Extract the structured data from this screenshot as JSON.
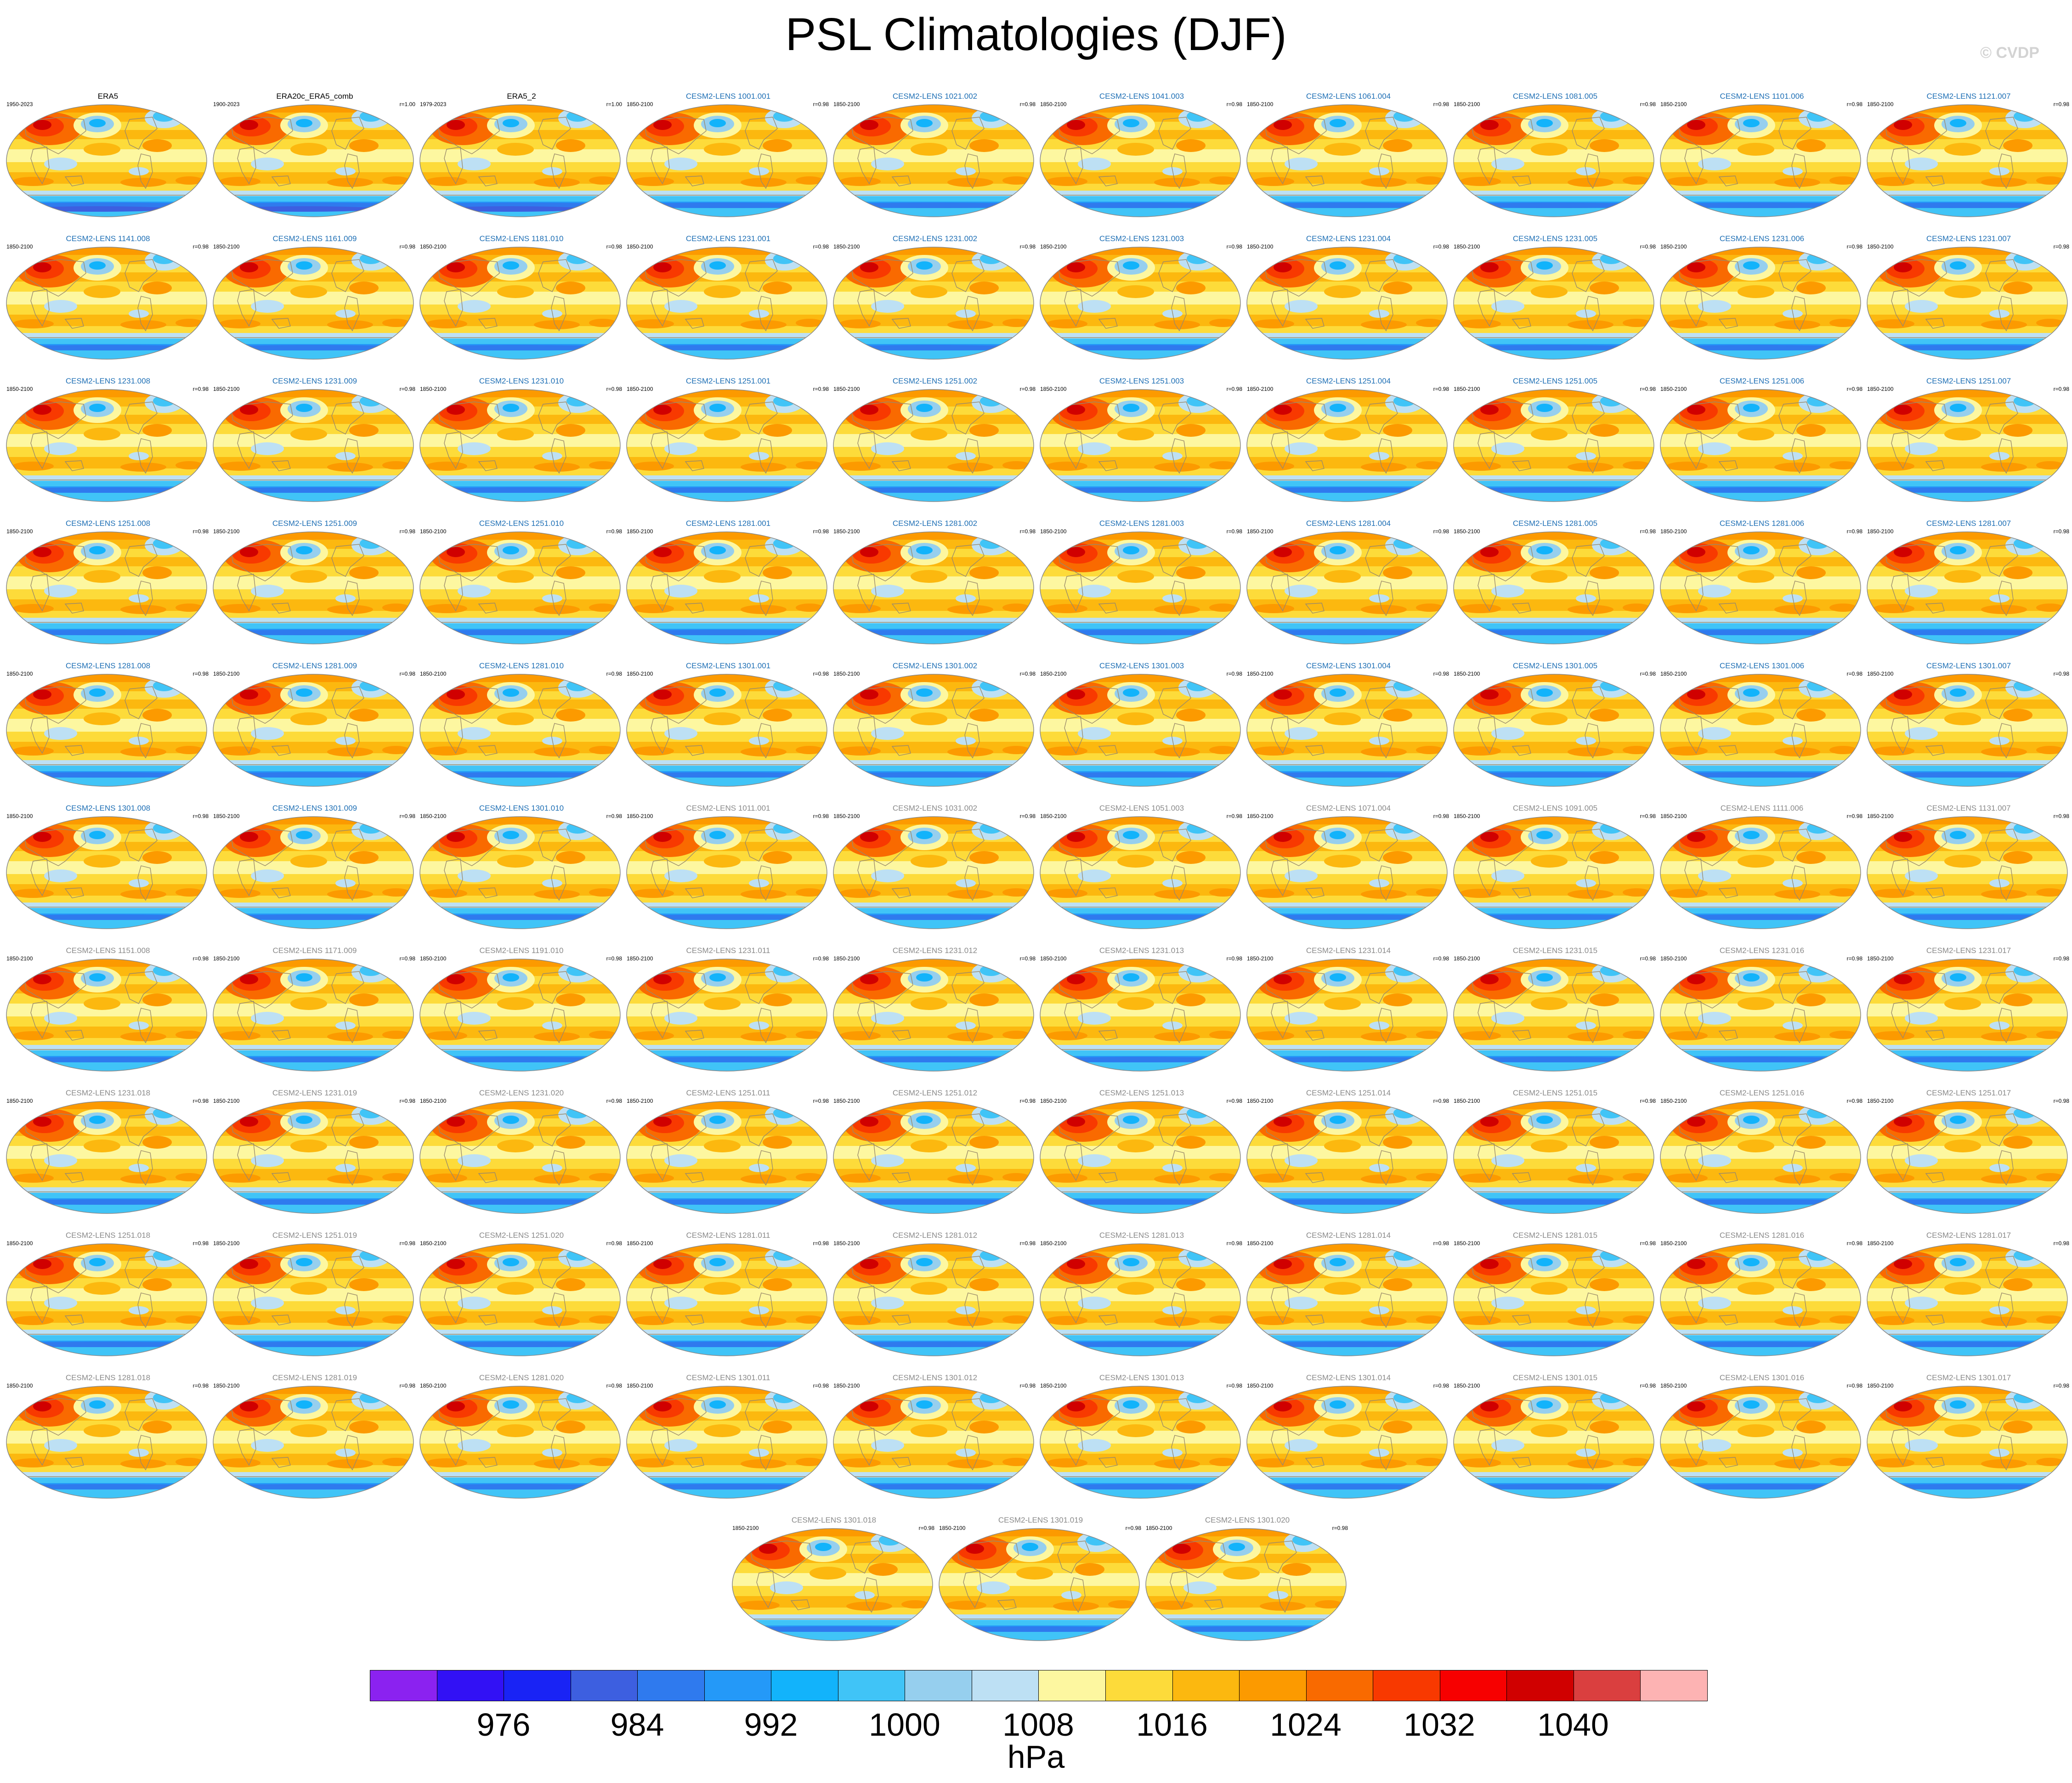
{
  "title": "PSL Climatologies (DJF)",
  "watermark": "© CVDP",
  "colors": {
    "observation_title": "#000000",
    "cesm_title_blue": "#1e6fb5",
    "cesm_title_gray": "#8a8a8a"
  },
  "chart_data": {
    "type": "heatmap",
    "title": "PSL Climatologies (DJF)",
    "projection": "Robinson global map",
    "colorbar": {
      "units": "hPa",
      "tick_labels": [
        "976",
        "984",
        "992",
        "1000",
        "1008",
        "1016",
        "1024",
        "1032",
        "1040"
      ],
      "colors": [
        "#8b22f0",
        "#3211f5",
        "#1923f5",
        "#3d5fe0",
        "#2f7aee",
        "#2499f8",
        "#12b3fb",
        "#40c4f7",
        "#96cfee",
        "#bde0f4",
        "#fdf7a0",
        "#fddb3a",
        "#fcb80f",
        "#fc9a00",
        "#f96a00",
        "#f83900",
        "#f70000",
        "#d00000",
        "#da3f3f",
        "#fdb3b3"
      ]
    },
    "panels": [
      {
        "title": "ERA5",
        "years": "1950-2023",
        "r": "",
        "style": "obs"
      },
      {
        "title": "ERA20c_ERA5_comb",
        "years": "1900-2023",
        "r": "r=1.00",
        "style": "obs"
      },
      {
        "title": "ERA5_2",
        "years": "1979-2023",
        "r": "r=1.00",
        "style": "obs"
      },
      {
        "title": "CESM2-LENS 1001.001",
        "years": "1850-2100",
        "r": "r=0.98",
        "style": "blue"
      },
      {
        "title": "CESM2-LENS 1021.002",
        "years": "1850-2100",
        "r": "r=0.98",
        "style": "blue"
      },
      {
        "title": "CESM2-LENS 1041.003",
        "years": "1850-2100",
        "r": "r=0.98",
        "style": "blue"
      },
      {
        "title": "CESM2-LENS 1061.004",
        "years": "1850-2100",
        "r": "r=0.98",
        "style": "blue"
      },
      {
        "title": "CESM2-LENS 1081.005",
        "years": "1850-2100",
        "r": "r=0.98",
        "style": "blue"
      },
      {
        "title": "CESM2-LENS 1101.006",
        "years": "1850-2100",
        "r": "r=0.98",
        "style": "blue"
      },
      {
        "title": "CESM2-LENS 1121.007",
        "years": "1850-2100",
        "r": "r=0.98",
        "style": "blue"
      },
      {
        "title": "CESM2-LENS 1141.008",
        "years": "1850-2100",
        "r": "r=0.98",
        "style": "blue"
      },
      {
        "title": "CESM2-LENS 1161.009",
        "years": "1850-2100",
        "r": "r=0.98",
        "style": "blue"
      },
      {
        "title": "CESM2-LENS 1181.010",
        "years": "1850-2100",
        "r": "r=0.98",
        "style": "blue"
      },
      {
        "title": "CESM2-LENS 1231.001",
        "years": "1850-2100",
        "r": "r=0.98",
        "style": "blue"
      },
      {
        "title": "CESM2-LENS 1231.002",
        "years": "1850-2100",
        "r": "r=0.98",
        "style": "blue"
      },
      {
        "title": "CESM2-LENS 1231.003",
        "years": "1850-2100",
        "r": "r=0.98",
        "style": "blue"
      },
      {
        "title": "CESM2-LENS 1231.004",
        "years": "1850-2100",
        "r": "r=0.98",
        "style": "blue"
      },
      {
        "title": "CESM2-LENS 1231.005",
        "years": "1850-2100",
        "r": "r=0.98",
        "style": "blue"
      },
      {
        "title": "CESM2-LENS 1231.006",
        "years": "1850-2100",
        "r": "r=0.98",
        "style": "blue"
      },
      {
        "title": "CESM2-LENS 1231.007",
        "years": "1850-2100",
        "r": "r=0.98",
        "style": "blue"
      },
      {
        "title": "CESM2-LENS 1231.008",
        "years": "1850-2100",
        "r": "r=0.98",
        "style": "blue"
      },
      {
        "title": "CESM2-LENS 1231.009",
        "years": "1850-2100",
        "r": "r=0.98",
        "style": "blue"
      },
      {
        "title": "CESM2-LENS 1231.010",
        "years": "1850-2100",
        "r": "r=0.98",
        "style": "blue"
      },
      {
        "title": "CESM2-LENS 1251.001",
        "years": "1850-2100",
        "r": "r=0.98",
        "style": "blue"
      },
      {
        "title": "CESM2-LENS 1251.002",
        "years": "1850-2100",
        "r": "r=0.98",
        "style": "blue"
      },
      {
        "title": "CESM2-LENS 1251.003",
        "years": "1850-2100",
        "r": "r=0.98",
        "style": "blue"
      },
      {
        "title": "CESM2-LENS 1251.004",
        "years": "1850-2100",
        "r": "r=0.98",
        "style": "blue"
      },
      {
        "title": "CESM2-LENS 1251.005",
        "years": "1850-2100",
        "r": "r=0.98",
        "style": "blue"
      },
      {
        "title": "CESM2-LENS 1251.006",
        "years": "1850-2100",
        "r": "r=0.98",
        "style": "blue"
      },
      {
        "title": "CESM2-LENS 1251.007",
        "years": "1850-2100",
        "r": "r=0.98",
        "style": "blue"
      },
      {
        "title": "CESM2-LENS 1251.008",
        "years": "1850-2100",
        "r": "r=0.98",
        "style": "blue"
      },
      {
        "title": "CESM2-LENS 1251.009",
        "years": "1850-2100",
        "r": "r=0.98",
        "style": "blue"
      },
      {
        "title": "CESM2-LENS 1251.010",
        "years": "1850-2100",
        "r": "r=0.98",
        "style": "blue"
      },
      {
        "title": "CESM2-LENS 1281.001",
        "years": "1850-2100",
        "r": "r=0.98",
        "style": "blue"
      },
      {
        "title": "CESM2-LENS 1281.002",
        "years": "1850-2100",
        "r": "r=0.98",
        "style": "blue"
      },
      {
        "title": "CESM2-LENS 1281.003",
        "years": "1850-2100",
        "r": "r=0.98",
        "style": "blue"
      },
      {
        "title": "CESM2-LENS 1281.004",
        "years": "1850-2100",
        "r": "r=0.98",
        "style": "blue"
      },
      {
        "title": "CESM2-LENS 1281.005",
        "years": "1850-2100",
        "r": "r=0.98",
        "style": "blue"
      },
      {
        "title": "CESM2-LENS 1281.006",
        "years": "1850-2100",
        "r": "r=0.98",
        "style": "blue"
      },
      {
        "title": "CESM2-LENS 1281.007",
        "years": "1850-2100",
        "r": "r=0.98",
        "style": "blue"
      },
      {
        "title": "CESM2-LENS 1281.008",
        "years": "1850-2100",
        "r": "r=0.98",
        "style": "blue"
      },
      {
        "title": "CESM2-LENS 1281.009",
        "years": "1850-2100",
        "r": "r=0.98",
        "style": "blue"
      },
      {
        "title": "CESM2-LENS 1281.010",
        "years": "1850-2100",
        "r": "r=0.98",
        "style": "blue"
      },
      {
        "title": "CESM2-LENS 1301.001",
        "years": "1850-2100",
        "r": "r=0.98",
        "style": "blue"
      },
      {
        "title": "CESM2-LENS 1301.002",
        "years": "1850-2100",
        "r": "r=0.98",
        "style": "blue"
      },
      {
        "title": "CESM2-LENS 1301.003",
        "years": "1850-2100",
        "r": "r=0.98",
        "style": "blue"
      },
      {
        "title": "CESM2-LENS 1301.004",
        "years": "1850-2100",
        "r": "r=0.98",
        "style": "blue"
      },
      {
        "title": "CESM2-LENS 1301.005",
        "years": "1850-2100",
        "r": "r=0.98",
        "style": "blue"
      },
      {
        "title": "CESM2-LENS 1301.006",
        "years": "1850-2100",
        "r": "r=0.98",
        "style": "blue"
      },
      {
        "title": "CESM2-LENS 1301.007",
        "years": "1850-2100",
        "r": "r=0.98",
        "style": "blue"
      },
      {
        "title": "CESM2-LENS 1301.008",
        "years": "1850-2100",
        "r": "r=0.98",
        "style": "blue"
      },
      {
        "title": "CESM2-LENS 1301.009",
        "years": "1850-2100",
        "r": "r=0.98",
        "style": "blue"
      },
      {
        "title": "CESM2-LENS 1301.010",
        "years": "1850-2100",
        "r": "r=0.98",
        "style": "blue"
      },
      {
        "title": "CESM2-LENS 1011.001",
        "years": "1850-2100",
        "r": "r=0.98",
        "style": "gray"
      },
      {
        "title": "CESM2-LENS 1031.002",
        "years": "1850-2100",
        "r": "r=0.98",
        "style": "gray"
      },
      {
        "title": "CESM2-LENS 1051.003",
        "years": "1850-2100",
        "r": "r=0.98",
        "style": "gray"
      },
      {
        "title": "CESM2-LENS 1071.004",
        "years": "1850-2100",
        "r": "r=0.98",
        "style": "gray"
      },
      {
        "title": "CESM2-LENS 1091.005",
        "years": "1850-2100",
        "r": "r=0.98",
        "style": "gray"
      },
      {
        "title": "CESM2-LENS 1111.006",
        "years": "1850-2100",
        "r": "r=0.98",
        "style": "gray"
      },
      {
        "title": "CESM2-LENS 1131.007",
        "years": "1850-2100",
        "r": "r=0.98",
        "style": "gray"
      },
      {
        "title": "CESM2-LENS 1151.008",
        "years": "1850-2100",
        "r": "r=0.98",
        "style": "gray"
      },
      {
        "title": "CESM2-LENS 1171.009",
        "years": "1850-2100",
        "r": "r=0.98",
        "style": "gray"
      },
      {
        "title": "CESM2-LENS 1191.010",
        "years": "1850-2100",
        "r": "r=0.98",
        "style": "gray"
      },
      {
        "title": "CESM2-LENS 1231.011",
        "years": "1850-2100",
        "r": "r=0.98",
        "style": "gray"
      },
      {
        "title": "CESM2-LENS 1231.012",
        "years": "1850-2100",
        "r": "r=0.98",
        "style": "gray"
      },
      {
        "title": "CESM2-LENS 1231.013",
        "years": "1850-2100",
        "r": "r=0.98",
        "style": "gray"
      },
      {
        "title": "CESM2-LENS 1231.014",
        "years": "1850-2100",
        "r": "r=0.98",
        "style": "gray"
      },
      {
        "title": "CESM2-LENS 1231.015",
        "years": "1850-2100",
        "r": "r=0.98",
        "style": "gray"
      },
      {
        "title": "CESM2-LENS 1231.016",
        "years": "1850-2100",
        "r": "r=0.98",
        "style": "gray"
      },
      {
        "title": "CESM2-LENS 1231.017",
        "years": "1850-2100",
        "r": "r=0.98",
        "style": "gray"
      },
      {
        "title": "CESM2-LENS 1231.018",
        "years": "1850-2100",
        "r": "r=0.98",
        "style": "gray"
      },
      {
        "title": "CESM2-LENS 1231.019",
        "years": "1850-2100",
        "r": "r=0.98",
        "style": "gray"
      },
      {
        "title": "CESM2-LENS 1231.020",
        "years": "1850-2100",
        "r": "r=0.98",
        "style": "gray"
      },
      {
        "title": "CESM2-LENS 1251.011",
        "years": "1850-2100",
        "r": "r=0.98",
        "style": "gray"
      },
      {
        "title": "CESM2-LENS 1251.012",
        "years": "1850-2100",
        "r": "r=0.98",
        "style": "gray"
      },
      {
        "title": "CESM2-LENS 1251.013",
        "years": "1850-2100",
        "r": "r=0.98",
        "style": "gray"
      },
      {
        "title": "CESM2-LENS 1251.014",
        "years": "1850-2100",
        "r": "r=0.98",
        "style": "gray"
      },
      {
        "title": "CESM2-LENS 1251.015",
        "years": "1850-2100",
        "r": "r=0.98",
        "style": "gray"
      },
      {
        "title": "CESM2-LENS 1251.016",
        "years": "1850-2100",
        "r": "r=0.98",
        "style": "gray"
      },
      {
        "title": "CESM2-LENS 1251.017",
        "years": "1850-2100",
        "r": "r=0.98",
        "style": "gray"
      },
      {
        "title": "CESM2-LENS 1251.018",
        "years": "1850-2100",
        "r": "r=0.98",
        "style": "gray"
      },
      {
        "title": "CESM2-LENS 1251.019",
        "years": "1850-2100",
        "r": "r=0.98",
        "style": "gray"
      },
      {
        "title": "CESM2-LENS 1251.020",
        "years": "1850-2100",
        "r": "r=0.98",
        "style": "gray"
      },
      {
        "title": "CESM2-LENS 1281.011",
        "years": "1850-2100",
        "r": "r=0.98",
        "style": "gray"
      },
      {
        "title": "CESM2-LENS 1281.012",
        "years": "1850-2100",
        "r": "r=0.98",
        "style": "gray"
      },
      {
        "title": "CESM2-LENS 1281.013",
        "years": "1850-2100",
        "r": "r=0.98",
        "style": "gray"
      },
      {
        "title": "CESM2-LENS 1281.014",
        "years": "1850-2100",
        "r": "r=0.98",
        "style": "gray"
      },
      {
        "title": "CESM2-LENS 1281.015",
        "years": "1850-2100",
        "r": "r=0.98",
        "style": "gray"
      },
      {
        "title": "CESM2-LENS 1281.016",
        "years": "1850-2100",
        "r": "r=0.98",
        "style": "gray"
      },
      {
        "title": "CESM2-LENS 1281.017",
        "years": "1850-2100",
        "r": "r=0.98",
        "style": "gray"
      },
      {
        "title": "CESM2-LENS 1281.018",
        "years": "1850-2100",
        "r": "r=0.98",
        "style": "gray"
      },
      {
        "title": "CESM2-LENS 1281.019",
        "years": "1850-2100",
        "r": "r=0.98",
        "style": "gray"
      },
      {
        "title": "CESM2-LENS 1281.020",
        "years": "1850-2100",
        "r": "r=0.98",
        "style": "gray"
      },
      {
        "title": "CESM2-LENS 1301.011",
        "years": "1850-2100",
        "r": "r=0.98",
        "style": "gray"
      },
      {
        "title": "CESM2-LENS 1301.012",
        "years": "1850-2100",
        "r": "r=0.98",
        "style": "gray"
      },
      {
        "title": "CESM2-LENS 1301.013",
        "years": "1850-2100",
        "r": "r=0.98",
        "style": "gray"
      },
      {
        "title": "CESM2-LENS 1301.014",
        "years": "1850-2100",
        "r": "r=0.98",
        "style": "gray"
      },
      {
        "title": "CESM2-LENS 1301.015",
        "years": "1850-2100",
        "r": "r=0.98",
        "style": "gray"
      },
      {
        "title": "CESM2-LENS 1301.016",
        "years": "1850-2100",
        "r": "r=0.98",
        "style": "gray"
      },
      {
        "title": "CESM2-LENS 1301.017",
        "years": "1850-2100",
        "r": "r=0.98",
        "style": "gray"
      },
      {
        "title": "CESM2-LENS 1301.018",
        "years": "1850-2100",
        "r": "r=0.98",
        "style": "gray"
      },
      {
        "title": "CESM2-LENS 1301.019",
        "years": "1850-2100",
        "r": "r=0.98",
        "style": "gray"
      },
      {
        "title": "CESM2-LENS 1301.020",
        "years": "1850-2100",
        "r": "r=0.98",
        "style": "gray"
      }
    ]
  }
}
